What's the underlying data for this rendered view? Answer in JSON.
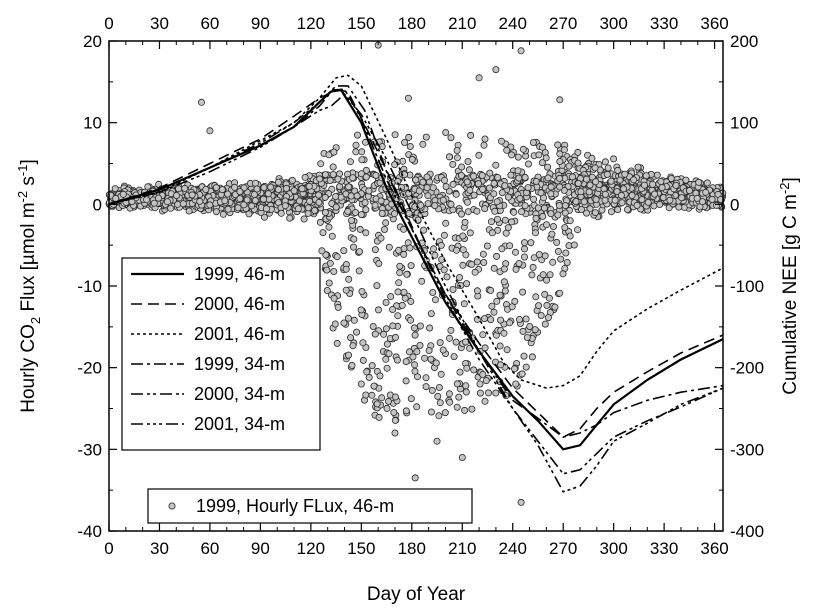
{
  "chart_data": {
    "type": "line",
    "xlabel": "Day of Year",
    "ylabel_left": "Hourly CO2 Flux [µmol m-2 s-1]",
    "ylabel_right": "Cumulative NEE [g C m-2]",
    "ylabel_left_parts": {
      "a": "Hourly CO",
      "b": "2",
      "c": " Flux  [µmol m",
      "d": "-2",
      "e": " s",
      "f": "-1",
      "g": "]"
    },
    "ylabel_right_parts": {
      "a": "Cumulative NEE  [g C m",
      "b": "-2",
      "c": "]"
    },
    "xlim": [
      0,
      365
    ],
    "ylim_left": [
      -40,
      20
    ],
    "ylim_right": [
      -400,
      200
    ],
    "x_ticks": [
      0,
      30,
      60,
      90,
      120,
      150,
      180,
      210,
      240,
      270,
      300,
      330,
      360
    ],
    "y_left_ticks": [
      -40,
      -30,
      -20,
      -10,
      0,
      10,
      20
    ],
    "y_right_ticks": [
      -400,
      -300,
      -200,
      -100,
      0,
      100,
      200
    ],
    "grid": false,
    "series": [
      {
        "name": "1999, 46-m",
        "style": "solid",
        "axis": "right",
        "points": [
          [
            0,
            0
          ],
          [
            30,
            18
          ],
          [
            60,
            45
          ],
          [
            90,
            72
          ],
          [
            110,
            95
          ],
          [
            125,
            125
          ],
          [
            132,
            138
          ],
          [
            138,
            140
          ],
          [
            150,
            100
          ],
          [
            165,
            20
          ],
          [
            180,
            -40
          ],
          [
            200,
            -120
          ],
          [
            220,
            -180
          ],
          [
            240,
            -235
          ],
          [
            255,
            -265
          ],
          [
            270,
            -300
          ],
          [
            280,
            -295
          ],
          [
            290,
            -270
          ],
          [
            300,
            -245
          ],
          [
            320,
            -215
          ],
          [
            340,
            -190
          ],
          [
            365,
            -165
          ]
        ]
      },
      {
        "name": "2000, 46-m",
        "style": "dashed",
        "axis": "right",
        "points": [
          [
            0,
            0
          ],
          [
            30,
            20
          ],
          [
            60,
            50
          ],
          [
            90,
            80
          ],
          [
            110,
            108
          ],
          [
            125,
            130
          ],
          [
            135,
            140
          ],
          [
            142,
            138
          ],
          [
            155,
            85
          ],
          [
            170,
            20
          ],
          [
            185,
            -50
          ],
          [
            200,
            -110
          ],
          [
            220,
            -170
          ],
          [
            240,
            -225
          ],
          [
            255,
            -255
          ],
          [
            270,
            -285
          ],
          [
            280,
            -275
          ],
          [
            290,
            -250
          ],
          [
            300,
            -230
          ],
          [
            320,
            -205
          ],
          [
            340,
            -182
          ],
          [
            365,
            -160
          ]
        ]
      },
      {
        "name": "2001, 46-m",
        "style": "dotted",
        "axis": "right",
        "points": [
          [
            0,
            0
          ],
          [
            30,
            15
          ],
          [
            60,
            45
          ],
          [
            90,
            78
          ],
          [
            110,
            100
          ],
          [
            125,
            130
          ],
          [
            135,
            155
          ],
          [
            142,
            158
          ],
          [
            150,
            145
          ],
          [
            165,
            80
          ],
          [
            180,
            10
          ],
          [
            200,
            -70
          ],
          [
            220,
            -140
          ],
          [
            235,
            -195
          ],
          [
            245,
            -215
          ],
          [
            260,
            -225
          ],
          [
            270,
            -222
          ],
          [
            280,
            -210
          ],
          [
            290,
            -180
          ],
          [
            300,
            -155
          ],
          [
            320,
            -128
          ],
          [
            340,
            -105
          ],
          [
            365,
            -78
          ]
        ]
      },
      {
        "name": "1999, 34-m",
        "style": "dashdot",
        "axis": "right",
        "points": [
          [
            0,
            0
          ],
          [
            30,
            18
          ],
          [
            60,
            45
          ],
          [
            90,
            72
          ],
          [
            110,
            95
          ],
          [
            125,
            120
          ],
          [
            133,
            140
          ],
          [
            140,
            141
          ],
          [
            150,
            105
          ],
          [
            165,
            30
          ],
          [
            180,
            -30
          ],
          [
            200,
            -110
          ],
          [
            220,
            -180
          ],
          [
            240,
            -240
          ],
          [
            255,
            -262
          ],
          [
            270,
            -285
          ],
          [
            280,
            -280
          ],
          [
            290,
            -270
          ],
          [
            300,
            -255
          ],
          [
            320,
            -240
          ],
          [
            340,
            -230
          ],
          [
            365,
            -222
          ]
        ]
      },
      {
        "name": "2000, 34-m",
        "style": "dashdotdot",
        "axis": "right",
        "points": [
          [
            0,
            0
          ],
          [
            30,
            18
          ],
          [
            60,
            45
          ],
          [
            90,
            75
          ],
          [
            110,
            100
          ],
          [
            125,
            125
          ],
          [
            135,
            145
          ],
          [
            142,
            145
          ],
          [
            152,
            115
          ],
          [
            165,
            40
          ],
          [
            180,
            -30
          ],
          [
            200,
            -115
          ],
          [
            220,
            -190
          ],
          [
            240,
            -250
          ],
          [
            255,
            -290
          ],
          [
            270,
            -330
          ],
          [
            280,
            -325
          ],
          [
            290,
            -305
          ],
          [
            300,
            -285
          ],
          [
            320,
            -265
          ],
          [
            340,
            -248
          ],
          [
            365,
            -225
          ]
        ]
      },
      {
        "name": "2001, 34-m",
        "style": "dashdotdotdot",
        "axis": "right",
        "points": [
          [
            0,
            0
          ],
          [
            30,
            15
          ],
          [
            60,
            40
          ],
          [
            90,
            70
          ],
          [
            110,
            95
          ],
          [
            125,
            115
          ],
          [
            132,
            120
          ],
          [
            140,
            135
          ],
          [
            150,
            110
          ],
          [
            165,
            55
          ],
          [
            180,
            -10
          ],
          [
            200,
            -100
          ],
          [
            220,
            -180
          ],
          [
            240,
            -250
          ],
          [
            255,
            -295
          ],
          [
            270,
            -352
          ],
          [
            280,
            -345
          ],
          [
            290,
            -320
          ],
          [
            300,
            -290
          ],
          [
            320,
            -268
          ],
          [
            340,
            -245
          ],
          [
            365,
            -225
          ]
        ]
      }
    ],
    "scatter": {
      "name": "1999, Hourly FLux, 46-m",
      "axis": "left",
      "fill": "#c4c4c4",
      "stroke": "#2a2a2a",
      "envelope": [
        {
          "x": 0,
          "lo": -0.8,
          "hi": 2.5
        },
        {
          "x": 60,
          "lo": -1.5,
          "hi": 3.0
        },
        {
          "x": 110,
          "lo": -2.5,
          "hi": 4.0
        },
        {
          "x": 125,
          "lo": -4.0,
          "hi": 6.0
        },
        {
          "x": 135,
          "lo": -18.0,
          "hi": 8.0
        },
        {
          "x": 160,
          "lo": -27.0,
          "hi": 9.0
        },
        {
          "x": 200,
          "lo": -26.0,
          "hi": 9.0
        },
        {
          "x": 240,
          "lo": -24.0,
          "hi": 8.0
        },
        {
          "x": 265,
          "lo": -14.0,
          "hi": 8.0
        },
        {
          "x": 280,
          "lo": -3.0,
          "hi": 7.0
        },
        {
          "x": 320,
          "lo": -1.5,
          "hi": 5.0
        },
        {
          "x": 365,
          "lo": -0.8,
          "hi": 2.5
        }
      ],
      "outliers": [
        [
          55,
          12.5
        ],
        [
          160,
          19.5
        ],
        [
          178,
          13
        ],
        [
          220,
          15.5
        ],
        [
          230,
          16.5
        ],
        [
          245,
          18.8
        ],
        [
          268,
          12.8
        ],
        [
          60,
          9
        ],
        [
          150,
          -22
        ],
        [
          170,
          -28
        ],
        [
          182,
          -33.5
        ],
        [
          245,
          -36.5
        ],
        [
          210,
          -31
        ],
        [
          195,
          -29
        ]
      ]
    },
    "legend_lines_position": "mid-left",
    "legend_scatter_position": "bottom-left"
  }
}
